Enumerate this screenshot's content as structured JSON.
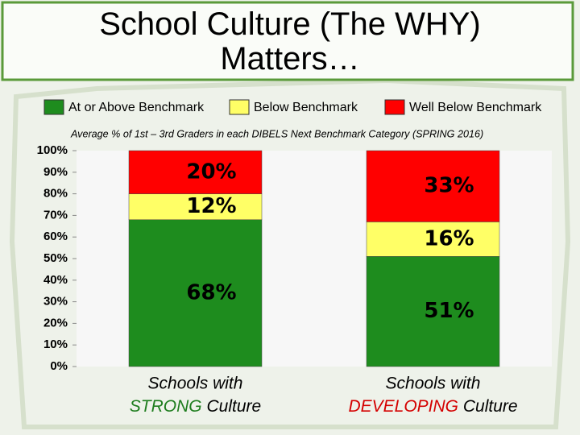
{
  "chart_data": {
    "type": "stacked_bar",
    "title": "School Culture (The WHY) Matters…",
    "subtitle": "Average % of 1st – 3rd Graders in each DIBELS Next Benchmark Category (SPRING 2016)",
    "categories": [
      [
        "Schools with",
        "STRONG",
        "Culture"
      ],
      [
        "Schools with",
        "DEVELOPING",
        "Culture"
      ]
    ],
    "category_highlight_colors": [
      "#1e7d1e",
      "#d40000"
    ],
    "series": [
      {
        "name": "At or Above Benchmark",
        "color": "#1e8c1e",
        "values": [
          68,
          51
        ],
        "value_labels": [
          "68%",
          "51%"
        ]
      },
      {
        "name": "Below Benchmark",
        "color": "#ffff66",
        "values": [
          12,
          16
        ],
        "value_labels": [
          "12%",
          "16%"
        ]
      },
      {
        "name": "Well Below Benchmark",
        "color": "#ff0000",
        "values": [
          20,
          33
        ],
        "value_labels": [
          "20%",
          "33%"
        ]
      }
    ],
    "ylim": [
      0,
      100
    ],
    "yticks": [
      {
        "value": 0,
        "label": "0%"
      },
      {
        "value": 10,
        "label": "10%"
      },
      {
        "value": 20,
        "label": "20%"
      },
      {
        "value": 30,
        "label": "30%"
      },
      {
        "value": 40,
        "label": "40%"
      },
      {
        "value": 50,
        "label": "50%"
      },
      {
        "value": 60,
        "label": "60%"
      },
      {
        "value": 70,
        "label": "70%"
      },
      {
        "value": 80,
        "label": "80%"
      },
      {
        "value": 90,
        "label": "90%"
      },
      {
        "value": 100,
        "label": "100%"
      }
    ]
  }
}
